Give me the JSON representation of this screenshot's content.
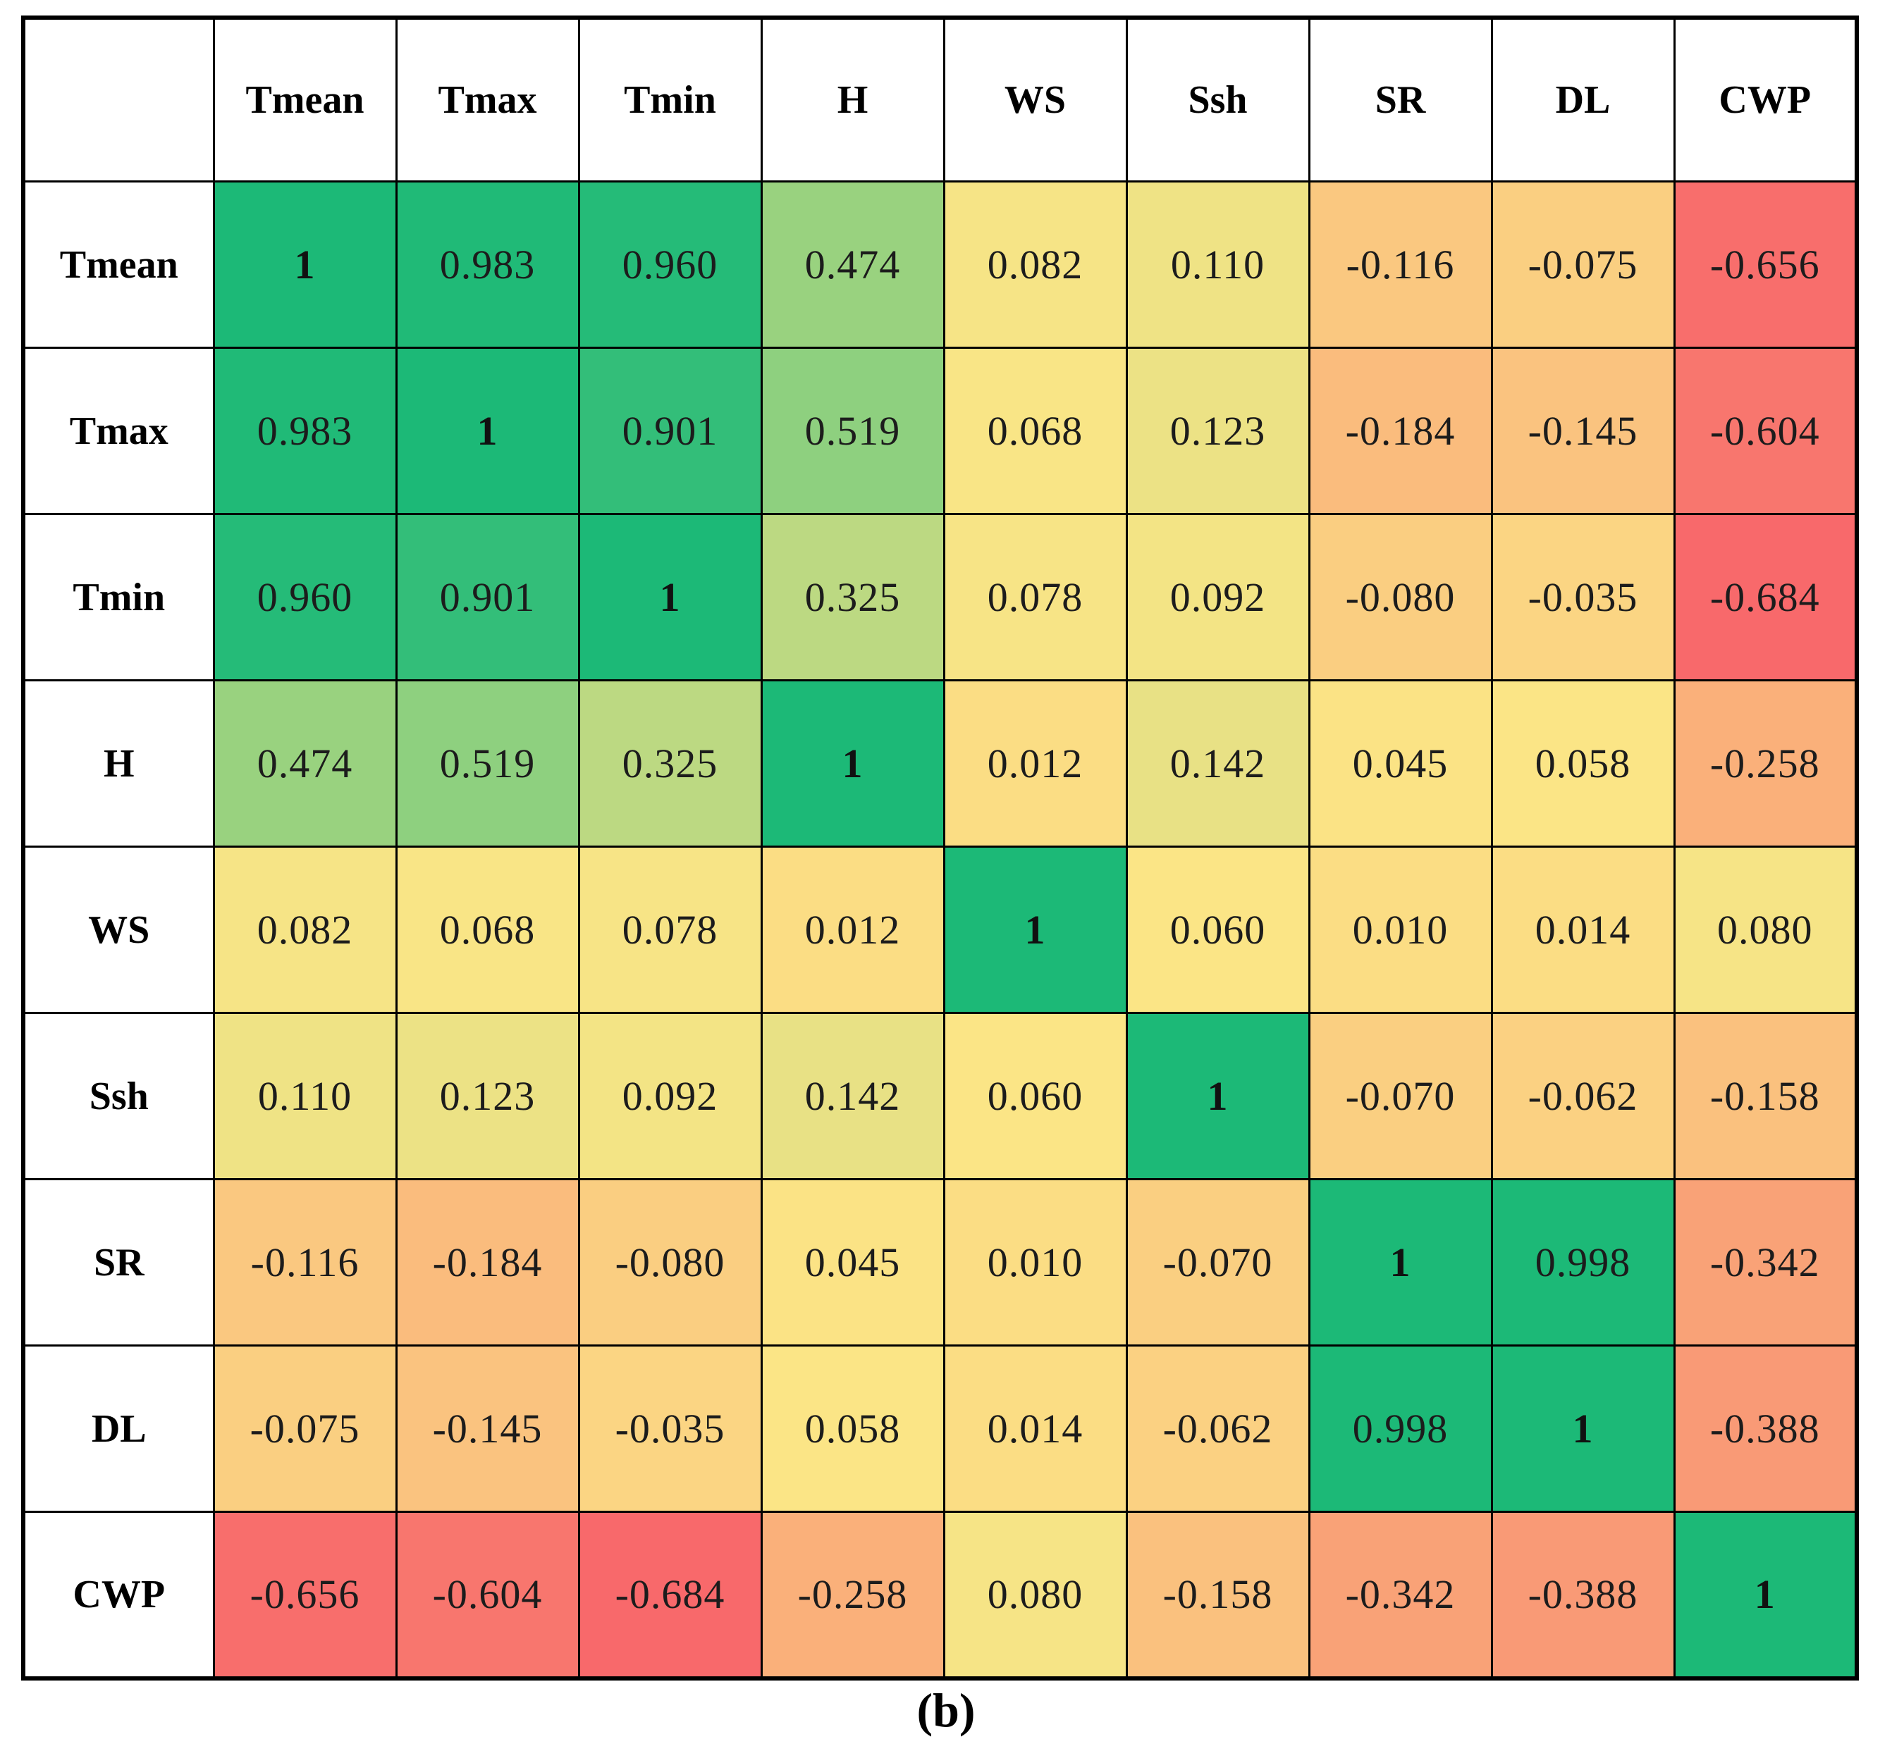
{
  "caption": "(b)",
  "chart_data": {
    "type": "heatmap",
    "description": "Pearson correlation matrix heatmap between meteorological variables and CWP, colored red-yellow-green",
    "variables": [
      "Tmean",
      "Tmax",
      "Tmin",
      "H",
      "WS",
      "Ssh",
      "SR",
      "DL",
      "CWP"
    ],
    "cells": [
      [
        "1",
        "0.983",
        "0.960",
        "0.474",
        "0.082",
        "0.110",
        "-0.116",
        "-0.075",
        "-0.656"
      ],
      [
        "0.983",
        "1",
        "0.901",
        "0.519",
        "0.068",
        "0.123",
        "-0.184",
        "-0.145",
        "-0.604"
      ],
      [
        "0.960",
        "0.901",
        "1",
        "0.325",
        "0.078",
        "0.092",
        "-0.080",
        "-0.035",
        "-0.684"
      ],
      [
        "0.474",
        "0.519",
        "0.325",
        "1",
        "0.012",
        "0.142",
        "0.045",
        "0.058",
        "-0.258"
      ],
      [
        "0.082",
        "0.068",
        "0.078",
        "0.012",
        "1",
        "0.060",
        "0.010",
        "0.014",
        "0.080"
      ],
      [
        "0.110",
        "0.123",
        "0.092",
        "0.142",
        "0.060",
        "1",
        "-0.070",
        "-0.062",
        "-0.158"
      ],
      [
        "-0.116",
        "-0.184",
        "-0.080",
        "0.045",
        "0.010",
        "-0.070",
        "1",
        "0.998",
        "-0.342"
      ],
      [
        "-0.075",
        "-0.145",
        "-0.035",
        "0.058",
        "0.014",
        "-0.062",
        "0.998",
        "1",
        "-0.388"
      ],
      [
        "-0.656",
        "-0.604",
        "-0.684",
        "-0.258",
        "0.080",
        "-0.158",
        "-0.342",
        "-0.388",
        "1"
      ]
    ],
    "colorscale": {
      "min_value": -0.684,
      "mid_value": 0.06,
      "max_value": 1,
      "min_color": "#F8696B",
      "mid_color": "#FBE586",
      "max_color": "#1CB977"
    },
    "grid": "black 3px lines, 6px outer border",
    "legend_position": "none"
  }
}
